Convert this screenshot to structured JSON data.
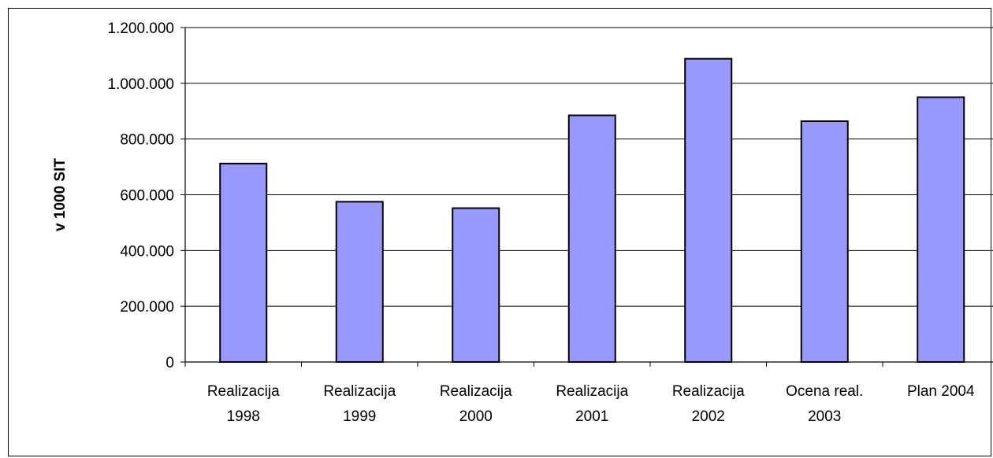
{
  "colors": {
    "bar_fill": "#9999FF",
    "bar_stroke": "#000000",
    "grid": "#000000",
    "background": "#FFFFFF"
  },
  "chart_data": {
    "type": "bar",
    "title": "",
    "xlabel": "",
    "ylabel": "v 1000 SIT",
    "ylim": [
      0,
      1200000
    ],
    "grid": true,
    "yticks": [
      0,
      200000,
      400000,
      600000,
      800000,
      1000000,
      1200000
    ],
    "ytick_labels": [
      "0",
      "200.000",
      "400.000",
      "600.000",
      "800.000",
      "1.000.000",
      "1.200.000"
    ],
    "categories": [
      [
        "Realizacija",
        "1998"
      ],
      [
        "Realizacija",
        "1999"
      ],
      [
        "Realizacija",
        "2000"
      ],
      [
        "Realizacija",
        "2001"
      ],
      [
        "Realizacija",
        "2002"
      ],
      [
        "Ocena real.",
        "2003"
      ],
      [
        "Plan 2004"
      ]
    ],
    "values": [
      712000,
      575000,
      552000,
      885000,
      1088000,
      864000,
      950000
    ]
  }
}
